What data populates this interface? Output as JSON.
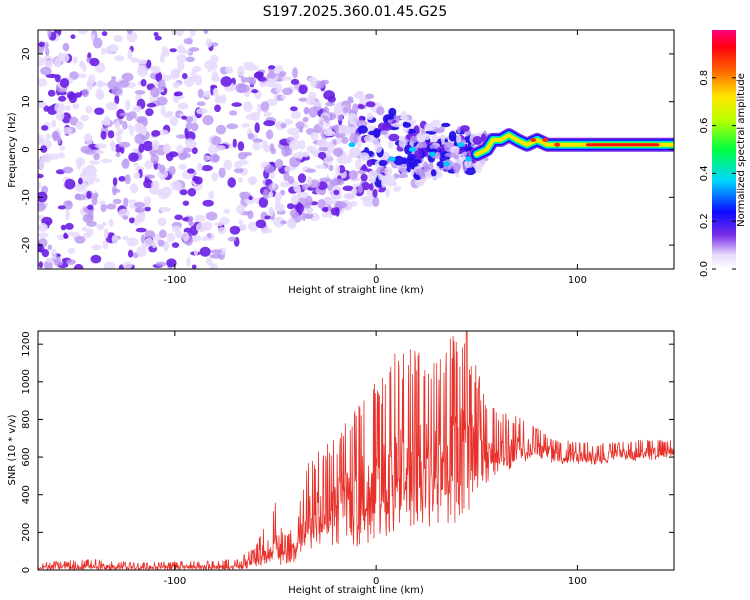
{
  "title": "S197.2025.360.01.45.G25",
  "colors": {
    "signal": "#e8312a",
    "frame": "#000000",
    "blob_weak": "#e6d9fb",
    "blob_mid": "#b996f2",
    "blob_strong": "#6a1ee6"
  },
  "chart_data": [
    {
      "type": "heatmap",
      "title": "S197.2025.360.01.45.G25",
      "xlabel": "Height of straight line (km)",
      "ylabel": "Frequency (Hz)",
      "xlim": [
        -168,
        148
      ],
      "ylim": [
        -25,
        25
      ],
      "xticks": [
        -100,
        0,
        100
      ],
      "yticks": [
        -20,
        -10,
        0,
        10,
        20
      ],
      "xtick_labels": [
        "-100",
        "0",
        "100"
      ],
      "ytick_labels": [
        "-20",
        "-10",
        "0",
        "10",
        "20"
      ],
      "colorbar": {
        "label": "Normalized spectral amplitude",
        "range": [
          0,
          1
        ],
        "ticks": [
          0.0,
          0.2,
          0.4,
          0.6,
          0.8
        ],
        "tick_labels": [
          "0.0",
          "0.2",
          "0.4",
          "0.6",
          "0.8"
        ],
        "colormap": "rainbow (white to purple to blue to cyan to green to yellow to red to magenta)"
      },
      "ridge": {
        "description": "Concentrated spectral energy near 0 Hz at heights above ~55 km",
        "points": [
          [
            50,
            -1
          ],
          [
            55,
            0
          ],
          [
            58,
            2
          ],
          [
            62,
            2
          ],
          [
            66,
            3
          ],
          [
            70,
            2
          ],
          [
            75,
            1
          ],
          [
            80,
            2
          ],
          [
            85,
            1
          ],
          [
            90,
            1
          ],
          [
            95,
            1
          ],
          [
            100,
            1
          ],
          [
            110,
            1
          ],
          [
            120,
            1
          ],
          [
            130,
            1
          ],
          [
            140,
            1
          ],
          [
            148,
            1
          ]
        ],
        "peak_amplitude": 0.9
      },
      "scatter_region": {
        "description": "Diffuse low-amplitude energy spread across all frequencies below ~-70 km, narrowing toward 0 Hz with increasing height",
        "x_range": [
          -168,
          55
        ],
        "amplitude_range": [
          0.05,
          0.4
        ]
      }
    },
    {
      "type": "line",
      "xlabel": "Height of straight line (km)",
      "ylabel": "SNR (10 * v/v)",
      "xlim": [
        -168,
        148
      ],
      "ylim": [
        0,
        1270
      ],
      "xticks": [
        -100,
        0,
        100
      ],
      "yticks": [
        0,
        200,
        400,
        600,
        800,
        1000,
        1200
      ],
      "xtick_labels": [
        "-100",
        "0",
        "100"
      ],
      "ytick_labels": [
        "0",
        "200",
        "400",
        "600",
        "800",
        "1000",
        "1200"
      ],
      "series": [
        {
          "name": "SNR",
          "color": "#e8312a",
          "envelope_x": [
            -168,
            -140,
            -120,
            -100,
            -80,
            -70,
            -60,
            -55,
            -50,
            -45,
            -40,
            -35,
            -30,
            -20,
            -10,
            0,
            10,
            20,
            30,
            40,
            45,
            50,
            55,
            60,
            70,
            80,
            90,
            100,
            110,
            120,
            130,
            140,
            148
          ],
          "envelope_min": [
            0,
            0,
            0,
            0,
            0,
            0,
            10,
            20,
            30,
            20,
            20,
            100,
            120,
            120,
            100,
            150,
            200,
            200,
            220,
            250,
            300,
            380,
            450,
            500,
            550,
            580,
            560,
            560,
            560,
            580,
            580,
            580,
            600
          ],
          "envelope_max": [
            40,
            60,
            40,
            45,
            50,
            60,
            120,
            260,
            360,
            180,
            250,
            560,
            620,
            720,
            900,
            1000,
            1160,
            1200,
            1140,
            1270,
            1270,
            1100,
            900,
            850,
            820,
            760,
            700,
            680,
            680,
            680,
            690,
            700,
            690
          ],
          "peak": {
            "x": 45,
            "y": 1270
          }
        }
      ]
    }
  ]
}
